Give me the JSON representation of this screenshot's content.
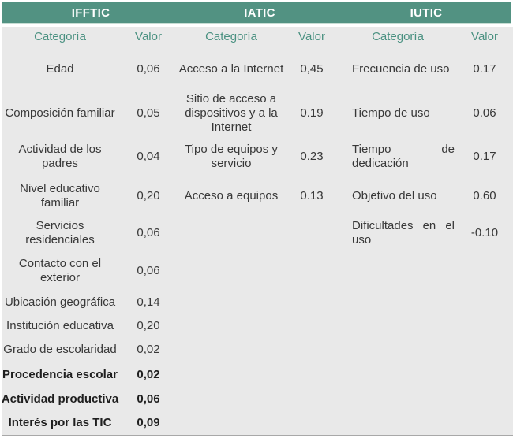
{
  "table": {
    "colors": {
      "header_bg": "#529282",
      "header_text": "#ffffff",
      "subheader_text": "#4a9181",
      "body_bg": "#e9e9e9",
      "body_text": "#383838",
      "bottom_border": "#a8a8a8"
    },
    "col_headers": {
      "category": "Categoría",
      "value": "Valor"
    },
    "ifftic": {
      "title": "IFFTIC",
      "rows": [
        {
          "label": "Edad",
          "value": "0,06"
        },
        {
          "label": "Composición familiar",
          "value": "0,05"
        },
        {
          "label": "Actividad de los\npadres",
          "value": "0,04"
        },
        {
          "label": "Nivel educativo\nfamiliar",
          "value": "0,20"
        },
        {
          "label": "Servicios\nresidenciales",
          "value": "0,06"
        },
        {
          "label": "Contacto con el\nexterior",
          "value": "0,06"
        },
        {
          "label": "Ubicación geográfica",
          "value": "0,14"
        },
        {
          "label": "Institución educativa",
          "value": "0,20"
        },
        {
          "label": "Grado de escolaridad",
          "value": "0,02"
        },
        {
          "label": "Procedencia escolar",
          "value": "0,02"
        },
        {
          "label": "Actividad productiva",
          "value": "0,06"
        },
        {
          "label": "Interés por las TIC",
          "value": "0,09"
        }
      ]
    },
    "iatic": {
      "title": "IATIC",
      "rows": [
        {
          "label": "Acceso a la Internet",
          "value": "0,45"
        },
        {
          "label": "Sitio de acceso a\ndispositivos y a la\nInternet",
          "value": "0.19"
        },
        {
          "label": "Tipo de equipos y\nservicio",
          "value": "0.23"
        },
        {
          "label": "Acceso a equipos",
          "value": "0.13"
        }
      ]
    },
    "iutic": {
      "title": "IUTIC",
      "rows": [
        {
          "label": "Frecuencia de uso",
          "value": "0.17"
        },
        {
          "label": "Tiempo de uso",
          "value": "0.06"
        },
        {
          "label": "Tiempo de dedicación",
          "value": "0.17"
        },
        {
          "label": "Objetivo del uso",
          "value": "0.60"
        },
        {
          "label": "Dificultades en el uso",
          "value": "-0.10"
        }
      ]
    }
  }
}
